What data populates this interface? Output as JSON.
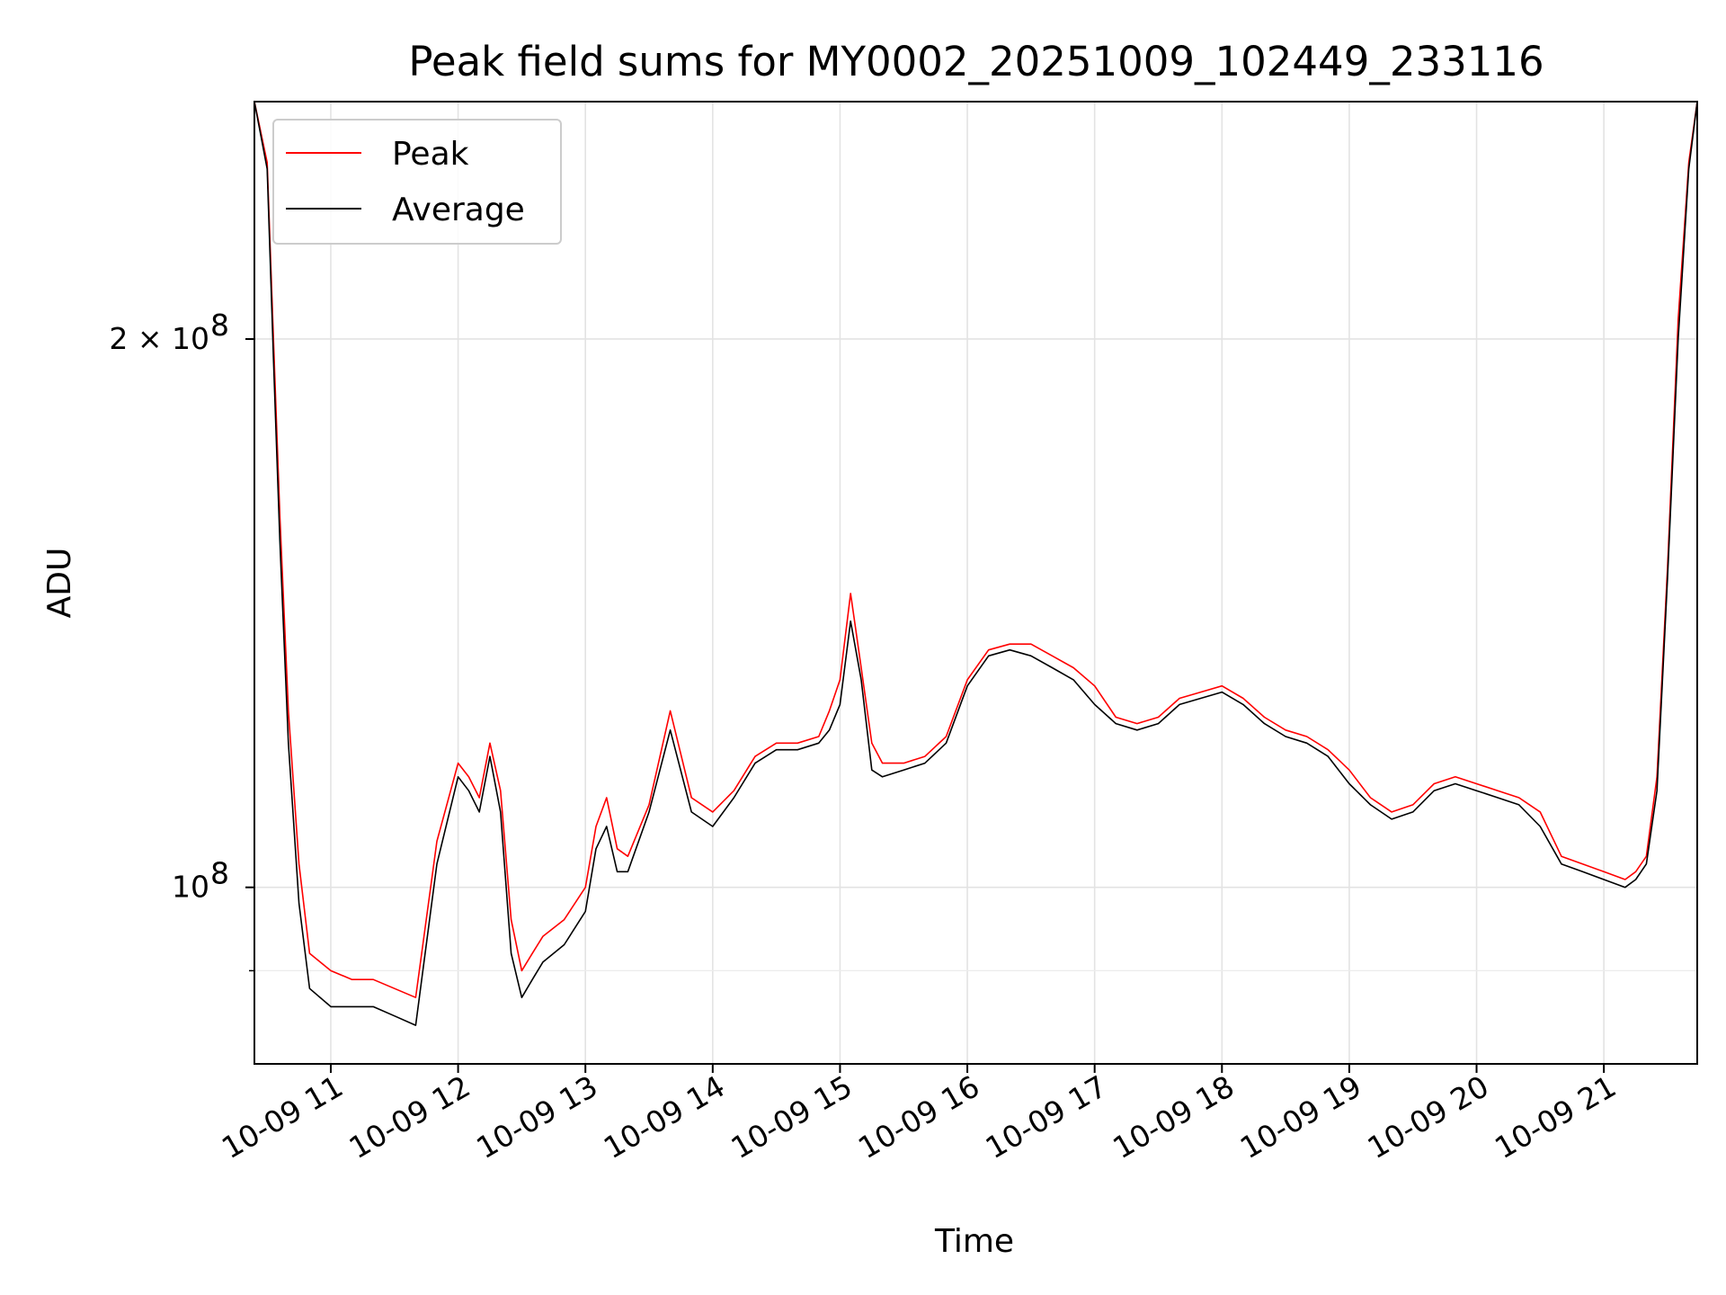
{
  "chart_data": {
    "type": "line",
    "title": "Peak field sums for MY0002_20251009_102449_233116",
    "xlabel": "Time",
    "ylabel": "ADU",
    "yscale": "log",
    "xlim": [
      "2025-10-09 10:24",
      "2025-10-09 21:44"
    ],
    "ylim": [
      80000000,
      270000000
    ],
    "grid": true,
    "legend_position": "top-left",
    "x_ticks": [
      {
        "value": "2025-10-09 11:00",
        "label": "10-09 11"
      },
      {
        "value": "2025-10-09 12:00",
        "label": "10-09 12"
      },
      {
        "value": "2025-10-09 13:00",
        "label": "10-09 13"
      },
      {
        "value": "2025-10-09 14:00",
        "label": "10-09 14"
      },
      {
        "value": "2025-10-09 15:00",
        "label": "10-09 15"
      },
      {
        "value": "2025-10-09 16:00",
        "label": "10-09 16"
      },
      {
        "value": "2025-10-09 17:00",
        "label": "10-09 17"
      },
      {
        "value": "2025-10-09 18:00",
        "label": "10-09 18"
      },
      {
        "value": "2025-10-09 19:00",
        "label": "10-09 19"
      },
      {
        "value": "2025-10-09 20:00",
        "label": "10-09 20"
      },
      {
        "value": "2025-10-09 21:00",
        "label": "10-09 21"
      }
    ],
    "y_ticks_major": [
      {
        "value": 100000000,
        "label": "10",
        "exp": "8"
      },
      {
        "value": 200000000,
        "label": "2 × 10",
        "exp": "8"
      }
    ],
    "y_ticks_minor": [
      90000000
    ],
    "series": [
      {
        "name": "Peak",
        "color": "#ff0000",
        "x": [
          "2025-10-09 10:24",
          "2025-10-09 10:30",
          "2025-10-09 10:33",
          "2025-10-09 10:36",
          "2025-10-09 10:40",
          "2025-10-09 10:45",
          "2025-10-09 10:50",
          "2025-10-09 11:00",
          "2025-10-09 11:10",
          "2025-10-09 11:20",
          "2025-10-09 11:30",
          "2025-10-09 11:40",
          "2025-10-09 11:50",
          "2025-10-09 12:00",
          "2025-10-09 12:05",
          "2025-10-09 12:10",
          "2025-10-09 12:15",
          "2025-10-09 12:20",
          "2025-10-09 12:25",
          "2025-10-09 12:30",
          "2025-10-09 12:35",
          "2025-10-09 12:40",
          "2025-10-09 12:50",
          "2025-10-09 13:00",
          "2025-10-09 13:05",
          "2025-10-09 13:10",
          "2025-10-09 13:15",
          "2025-10-09 13:20",
          "2025-10-09 13:30",
          "2025-10-09 13:40",
          "2025-10-09 13:50",
          "2025-10-09 14:00",
          "2025-10-09 14:10",
          "2025-10-09 14:20",
          "2025-10-09 14:30",
          "2025-10-09 14:40",
          "2025-10-09 14:50",
          "2025-10-09 14:55",
          "2025-10-09 15:00",
          "2025-10-09 15:05",
          "2025-10-09 15:10",
          "2025-10-09 15:15",
          "2025-10-09 15:20",
          "2025-10-09 15:30",
          "2025-10-09 15:40",
          "2025-10-09 15:50",
          "2025-10-09 16:00",
          "2025-10-09 16:10",
          "2025-10-09 16:20",
          "2025-10-09 16:30",
          "2025-10-09 16:40",
          "2025-10-09 16:50",
          "2025-10-09 17:00",
          "2025-10-09 17:10",
          "2025-10-09 17:20",
          "2025-10-09 17:30",
          "2025-10-09 17:40",
          "2025-10-09 17:50",
          "2025-10-09 18:00",
          "2025-10-09 18:10",
          "2025-10-09 18:20",
          "2025-10-09 18:30",
          "2025-10-09 18:40",
          "2025-10-09 18:50",
          "2025-10-09 19:00",
          "2025-10-09 19:10",
          "2025-10-09 19:20",
          "2025-10-09 19:30",
          "2025-10-09 19:40",
          "2025-10-09 19:50",
          "2025-10-09 20:00",
          "2025-10-09 20:10",
          "2025-10-09 20:20",
          "2025-10-09 20:30",
          "2025-10-09 20:40",
          "2025-10-09 20:50",
          "2025-10-09 21:00",
          "2025-10-09 21:10",
          "2025-10-09 21:15",
          "2025-10-09 21:20",
          "2025-10-09 21:25",
          "2025-10-09 21:30",
          "2025-10-09 21:35",
          "2025-10-09 21:40",
          "2025-10-09 21:44"
        ],
        "y": [
          270000000,
          250000000,
          200000000,
          160000000,
          125000000,
          103000000,
          92000000,
          90000000,
          89000000,
          89000000,
          88000000,
          87000000,
          106000000,
          117000000,
          115000000,
          112000000,
          120000000,
          113000000,
          96000000,
          90000000,
          92000000,
          94000000,
          96000000,
          100000000,
          108000000,
          112000000,
          105000000,
          104000000,
          111000000,
          125000000,
          112000000,
          110000000,
          113000000,
          118000000,
          120000000,
          120000000,
          121000000,
          125000000,
          130000000,
          145000000,
          132000000,
          120000000,
          117000000,
          117000000,
          118000000,
          121000000,
          130000000,
          135000000,
          136000000,
          136000000,
          134000000,
          132000000,
          129000000,
          124000000,
          123000000,
          124000000,
          127000000,
          128000000,
          129000000,
          127000000,
          124000000,
          122000000,
          121000000,
          119000000,
          116000000,
          112000000,
          110000000,
          111000000,
          114000000,
          115000000,
          114000000,
          113000000,
          112000000,
          110000000,
          104000000,
          103000000,
          102000000,
          101000000,
          102000000,
          104000000,
          115000000,
          150000000,
          205000000,
          250000000,
          270000000
        ]
      },
      {
        "name": "Average",
        "color": "#000000",
        "x": [
          "2025-10-09 10:24",
          "2025-10-09 10:30",
          "2025-10-09 10:33",
          "2025-10-09 10:36",
          "2025-10-09 10:40",
          "2025-10-09 10:45",
          "2025-10-09 10:50",
          "2025-10-09 11:00",
          "2025-10-09 11:10",
          "2025-10-09 11:20",
          "2025-10-09 11:30",
          "2025-10-09 11:40",
          "2025-10-09 11:50",
          "2025-10-09 12:00",
          "2025-10-09 12:05",
          "2025-10-09 12:10",
          "2025-10-09 12:15",
          "2025-10-09 12:20",
          "2025-10-09 12:25",
          "2025-10-09 12:30",
          "2025-10-09 12:35",
          "2025-10-09 12:40",
          "2025-10-09 12:50",
          "2025-10-09 13:00",
          "2025-10-09 13:05",
          "2025-10-09 13:10",
          "2025-10-09 13:15",
          "2025-10-09 13:20",
          "2025-10-09 13:30",
          "2025-10-09 13:40",
          "2025-10-09 13:50",
          "2025-10-09 14:00",
          "2025-10-09 14:10",
          "2025-10-09 14:20",
          "2025-10-09 14:30",
          "2025-10-09 14:40",
          "2025-10-09 14:50",
          "2025-10-09 14:55",
          "2025-10-09 15:00",
          "2025-10-09 15:05",
          "2025-10-09 15:10",
          "2025-10-09 15:15",
          "2025-10-09 15:20",
          "2025-10-09 15:30",
          "2025-10-09 15:40",
          "2025-10-09 15:50",
          "2025-10-09 16:00",
          "2025-10-09 16:10",
          "2025-10-09 16:20",
          "2025-10-09 16:30",
          "2025-10-09 16:40",
          "2025-10-09 16:50",
          "2025-10-09 17:00",
          "2025-10-09 17:10",
          "2025-10-09 17:20",
          "2025-10-09 17:30",
          "2025-10-09 17:40",
          "2025-10-09 17:50",
          "2025-10-09 18:00",
          "2025-10-09 18:10",
          "2025-10-09 18:20",
          "2025-10-09 18:30",
          "2025-10-09 18:40",
          "2025-10-09 18:50",
          "2025-10-09 19:00",
          "2025-10-09 19:10",
          "2025-10-09 19:20",
          "2025-10-09 19:30",
          "2025-10-09 19:40",
          "2025-10-09 19:50",
          "2025-10-09 20:00",
          "2025-10-09 20:10",
          "2025-10-09 20:20",
          "2025-10-09 20:30",
          "2025-10-09 20:40",
          "2025-10-09 20:50",
          "2025-10-09 21:00",
          "2025-10-09 21:10",
          "2025-10-09 21:15",
          "2025-10-09 21:20",
          "2025-10-09 21:25",
          "2025-10-09 21:30",
          "2025-10-09 21:35",
          "2025-10-09 21:40",
          "2025-10-09 21:44"
        ],
        "y": [
          270000000,
          248000000,
          195000000,
          155000000,
          120000000,
          98000000,
          88000000,
          86000000,
          86000000,
          86000000,
          85000000,
          84000000,
          103000000,
          115000000,
          113000000,
          110000000,
          118000000,
          110000000,
          92000000,
          87000000,
          89000000,
          91000000,
          93000000,
          97000000,
          105000000,
          108000000,
          102000000,
          102000000,
          110000000,
          122000000,
          110000000,
          108000000,
          112000000,
          117000000,
          119000000,
          119000000,
          120000000,
          122000000,
          126000000,
          140000000,
          130000000,
          116000000,
          115000000,
          116000000,
          117000000,
          120000000,
          129000000,
          134000000,
          135000000,
          134000000,
          132000000,
          130000000,
          126000000,
          123000000,
          122000000,
          123000000,
          126000000,
          127000000,
          128000000,
          126000000,
          123000000,
          121000000,
          120000000,
          118000000,
          114000000,
          111000000,
          109000000,
          110000000,
          113000000,
          114000000,
          113000000,
          112000000,
          111000000,
          108000000,
          103000000,
          102000000,
          101000000,
          100000000,
          101000000,
          103000000,
          113000000,
          148000000,
          200000000,
          248000000,
          270000000
        ]
      }
    ]
  }
}
